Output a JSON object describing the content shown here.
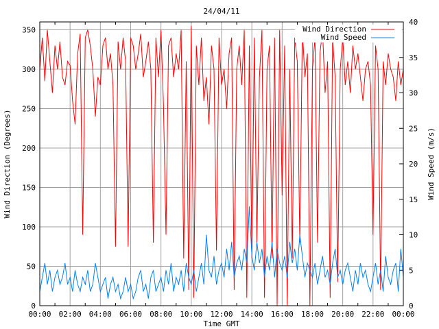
{
  "chart_data": {
    "type": "line",
    "title": "24/04/11",
    "xlabel": "Time GMT",
    "ylabel": "Wind Direction (Degrees)",
    "y2label": "Wind Speed (m/s)",
    "xlim": [
      0,
      24
    ],
    "ylim": [
      0,
      360
    ],
    "y2lim": [
      0,
      40
    ],
    "grid": true,
    "legend_position": "top-right",
    "x_tick_labels": [
      "00:00",
      "02:00",
      "04:00",
      "06:00",
      "08:00",
      "10:00",
      "12:00",
      "14:00",
      "16:00",
      "18:00",
      "20:00",
      "22:00",
      "00:00"
    ],
    "y_ticks": [
      0,
      50,
      100,
      150,
      200,
      250,
      300,
      350
    ],
    "y2_ticks": [
      0,
      5,
      10,
      15,
      20,
      25,
      30,
      35,
      40
    ],
    "x_step_hours": 0.1666667,
    "series": [
      {
        "name": "Wind Direction",
        "axis": "left",
        "color": "#ff0000",
        "values": [
          300,
          340,
          285,
          350,
          310,
          270,
          330,
          300,
          335,
          290,
          280,
          310,
          305,
          260,
          230,
          320,
          345,
          90,
          340,
          350,
          330,
          300,
          240,
          290,
          280,
          330,
          340,
          300,
          320,
          280,
          75,
          335,
          300,
          340,
          310,
          75,
          340,
          330,
          300,
          320,
          345,
          290,
          310,
          335,
          300,
          80,
          340,
          290,
          350,
          255,
          90,
          330,
          340,
          290,
          320,
          300,
          350,
          60,
          310,
          20,
          355,
          10,
          330,
          280,
          340,
          260,
          290,
          230,
          330,
          300,
          70,
          340,
          280,
          300,
          250,
          320,
          340,
          20,
          300,
          330,
          280,
          350,
          10,
          330,
          60,
          340,
          80,
          290,
          350,
          10,
          300,
          330,
          60,
          340,
          0,
          350,
          140,
          330,
          0,
          300,
          60,
          340,
          310,
          80,
          350,
          290,
          320,
          0,
          300,
          340,
          80,
          320,
          350,
          270,
          310,
          10,
          340,
          290,
          30,
          300,
          340,
          280,
          310,
          270,
          330,
          300,
          320,
          290,
          260,
          300,
          310,
          280,
          90,
          330,
          300,
          20,
          310,
          280,
          320,
          300,
          290,
          260,
          310,
          280,
          300
        ]
      },
      {
        "name": "Wind Speed",
        "axis": "right",
        "color": "#0080ff",
        "values": [
          2,
          4,
          6,
          3,
          5,
          2,
          4,
          5,
          3,
          4,
          6,
          3,
          4,
          2,
          5,
          3,
          2,
          4,
          3,
          5,
          2,
          3,
          6,
          4,
          2,
          3,
          4,
          1,
          3,
          4,
          2,
          3,
          1,
          2,
          4,
          2,
          3,
          1,
          2,
          4,
          5,
          2,
          3,
          1,
          4,
          5,
          2,
          3,
          4,
          2,
          5,
          3,
          6,
          2,
          4,
          3,
          5,
          2,
          6,
          4,
          3,
          5,
          2,
          4,
          6,
          3,
          10,
          5,
          4,
          7,
          3,
          5,
          6,
          4,
          8,
          5,
          9,
          4,
          6,
          7,
          5,
          8,
          6,
          14,
          7,
          5,
          9,
          6,
          8,
          4,
          7,
          5,
          9,
          4,
          8,
          6,
          5,
          7,
          4,
          9,
          6,
          8,
          5,
          10,
          7,
          4,
          6,
          5,
          4,
          6,
          3,
          5,
          7,
          4,
          5,
          3,
          6,
          8,
          4,
          5,
          3,
          5,
          6,
          4,
          2,
          5,
          3,
          6,
          4,
          5,
          3,
          2,
          4,
          6,
          3,
          5,
          2,
          7,
          4,
          3,
          5,
          6,
          2,
          8,
          4
        ]
      }
    ]
  }
}
